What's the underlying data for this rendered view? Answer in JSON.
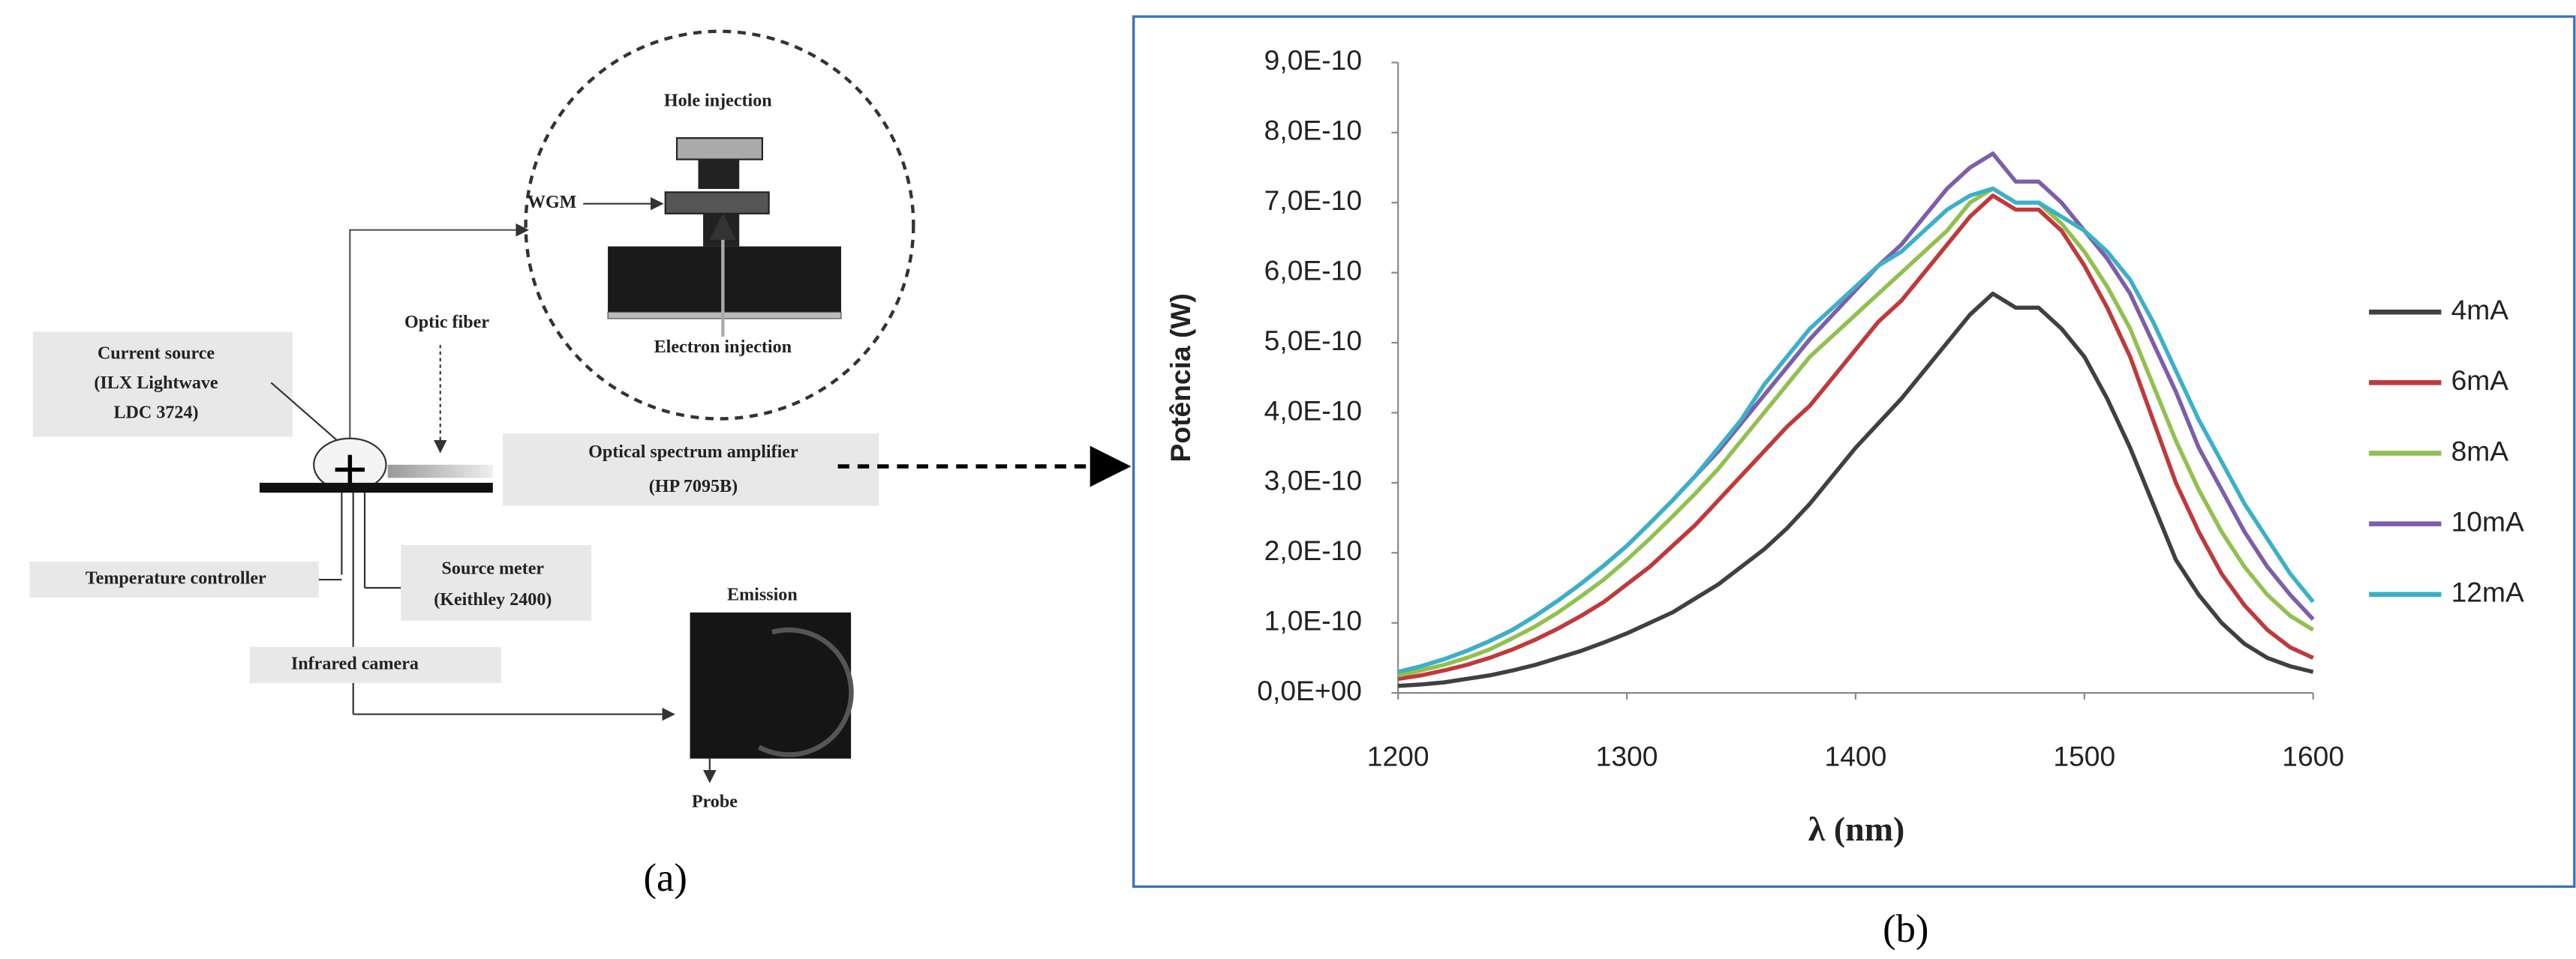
{
  "figure": {
    "captions": {
      "a": "(a)",
      "b": "(b)"
    },
    "diagram": {
      "hole_injection": "Hole injection",
      "wgm": "WGM",
      "electron_injection": "Electron injection",
      "optic_fiber": "Optic fiber",
      "current_source": [
        "Current source",
        "(ILX Lightwave",
        "LDC 3724)"
      ],
      "optical_amplifier": [
        "Optical spectrum amplifier",
        "(HP 7095B)"
      ],
      "temperature_controller": "Temperature controller",
      "source_meter": [
        "Source meter",
        "(Keithley 2400)"
      ],
      "infrared_camera": "Infrared camera",
      "emission": "Emission",
      "probe": "Probe"
    }
  },
  "chart_data": {
    "type": "line",
    "xlabel": "λ (nm)",
    "ylabel": "Potência (W)",
    "x": [
      1200,
      1210,
      1220,
      1230,
      1240,
      1250,
      1260,
      1270,
      1280,
      1290,
      1300,
      1310,
      1320,
      1330,
      1340,
      1350,
      1360,
      1370,
      1380,
      1390,
      1400,
      1410,
      1420,
      1430,
      1440,
      1450,
      1460,
      1470,
      1480,
      1490,
      1500,
      1510,
      1520,
      1530,
      1540,
      1550,
      1560,
      1570,
      1580,
      1590,
      1600
    ],
    "xlim": [
      1200,
      1600
    ],
    "xticks": [
      1200,
      1300,
      1400,
      1500,
      1600
    ],
    "ylim": [
      0,
      9e-10
    ],
    "yticks": [
      {
        "value": 0,
        "label": "0,0E+00"
      },
      {
        "value": 1e-10,
        "label": "1,0E-10"
      },
      {
        "value": 2e-10,
        "label": "2,0E-10"
      },
      {
        "value": 3e-10,
        "label": "3,0E-10"
      },
      {
        "value": 4e-10,
        "label": "4,0E-10"
      },
      {
        "value": 5e-10,
        "label": "5,0E-10"
      },
      {
        "value": 6e-10,
        "label": "6,0E-10"
      },
      {
        "value": 7e-10,
        "label": "7,0E-10"
      },
      {
        "value": 8e-10,
        "label": "8,0E-10"
      },
      {
        "value": 9e-10,
        "label": "9,0E-10"
      }
    ],
    "grid": false,
    "legend": "right",
    "series": [
      {
        "name": "4mA",
        "color": "#404040",
        "values": [
          1e-11,
          1.2e-11,
          1.5e-11,
          2e-11,
          2.5e-11,
          3.2e-11,
          4e-11,
          5e-11,
          6e-11,
          7.2e-11,
          8.5e-11,
          1e-10,
          1.15e-10,
          1.35e-10,
          1.55e-10,
          1.8e-10,
          2.05e-10,
          2.35e-10,
          2.7e-10,
          3.1e-10,
          3.5e-10,
          3.85e-10,
          4.2e-10,
          4.6e-10,
          5e-10,
          5.4e-10,
          5.7e-10,
          5.5e-10,
          5.5e-10,
          5.2e-10,
          4.8e-10,
          4.2e-10,
          3.5e-10,
          2.7e-10,
          1.9e-10,
          1.4e-10,
          1e-10,
          7e-11,
          5e-11,
          3.8e-11,
          3e-11
        ]
      },
      {
        "name": "6mA",
        "color": "#c0393b",
        "values": [
          2e-11,
          2.5e-11,
          3.2e-11,
          4e-11,
          5e-11,
          6.2e-11,
          7.6e-11,
          9.2e-11,
          1.1e-10,
          1.3e-10,
          1.55e-10,
          1.8e-10,
          2.1e-10,
          2.4e-10,
          2.75e-10,
          3.1e-10,
          3.45e-10,
          3.8e-10,
          4.1e-10,
          4.5e-10,
          4.9e-10,
          5.3e-10,
          5.6e-10,
          6e-10,
          6.4e-10,
          6.8e-10,
          7.1e-10,
          6.9e-10,
          6.9e-10,
          6.6e-10,
          6.1e-10,
          5.5e-10,
          4.8e-10,
          3.9e-10,
          3e-10,
          2.3e-10,
          1.7e-10,
          1.25e-10,
          9e-11,
          6.5e-11,
          5e-11
        ]
      },
      {
        "name": "8mA",
        "color": "#92c050",
        "values": [
          2.5e-11,
          3.2e-11,
          4e-11,
          5e-11,
          6.2e-11,
          7.8e-11,
          9.5e-11,
          1.15e-10,
          1.38e-10,
          1.62e-10,
          1.9e-10,
          2.2e-10,
          2.52e-10,
          2.85e-10,
          3.2e-10,
          3.6e-10,
          4e-10,
          4.4e-10,
          4.8e-10,
          5.1e-10,
          5.4e-10,
          5.7e-10,
          6e-10,
          6.3e-10,
          6.6e-10,
          7e-10,
          7.2e-10,
          7e-10,
          7e-10,
          6.7e-10,
          6.3e-10,
          5.8e-10,
          5.2e-10,
          4.4e-10,
          3.6e-10,
          2.9e-10,
          2.3e-10,
          1.8e-10,
          1.4e-10,
          1.1e-10,
          9e-11
        ]
      },
      {
        "name": "10mA",
        "color": "#7d5ea8",
        "values": [
          3e-11,
          3.8e-11,
          4.8e-11,
          6e-11,
          7.4e-11,
          9e-11,
          1.1e-10,
          1.32e-10,
          1.56e-10,
          1.82e-10,
          2.1e-10,
          2.42e-10,
          2.75e-10,
          3.1e-10,
          3.45e-10,
          3.85e-10,
          4.25e-10,
          4.65e-10,
          5.05e-10,
          5.4e-10,
          5.75e-10,
          6.1e-10,
          6.4e-10,
          6.8e-10,
          7.2e-10,
          7.5e-10,
          7.7e-10,
          7.3e-10,
          7.3e-10,
          7e-10,
          6.6e-10,
          6.2e-10,
          5.7e-10,
          5e-10,
          4.3e-10,
          3.5e-10,
          2.9e-10,
          2.3e-10,
          1.8e-10,
          1.4e-10,
          1.05e-10
        ]
      },
      {
        "name": "12mA",
        "color": "#3bb0c9",
        "values": [
          3e-11,
          3.8e-11,
          4.8e-11,
          6e-11,
          7.4e-11,
          9e-11,
          1.1e-10,
          1.32e-10,
          1.56e-10,
          1.82e-10,
          2.1e-10,
          2.42e-10,
          2.75e-10,
          3.1e-10,
          3.5e-10,
          3.9e-10,
          4.4e-10,
          4.8e-10,
          5.2e-10,
          5.5e-10,
          5.8e-10,
          6.1e-10,
          6.3e-10,
          6.6e-10,
          6.9e-10,
          7.1e-10,
          7.2e-10,
          7e-10,
          7e-10,
          6.8e-10,
          6.6e-10,
          6.3e-10,
          5.9e-10,
          5.3e-10,
          4.6e-10,
          3.9e-10,
          3.3e-10,
          2.7e-10,
          2.2e-10,
          1.7e-10,
          1.3e-10
        ]
      }
    ]
  }
}
